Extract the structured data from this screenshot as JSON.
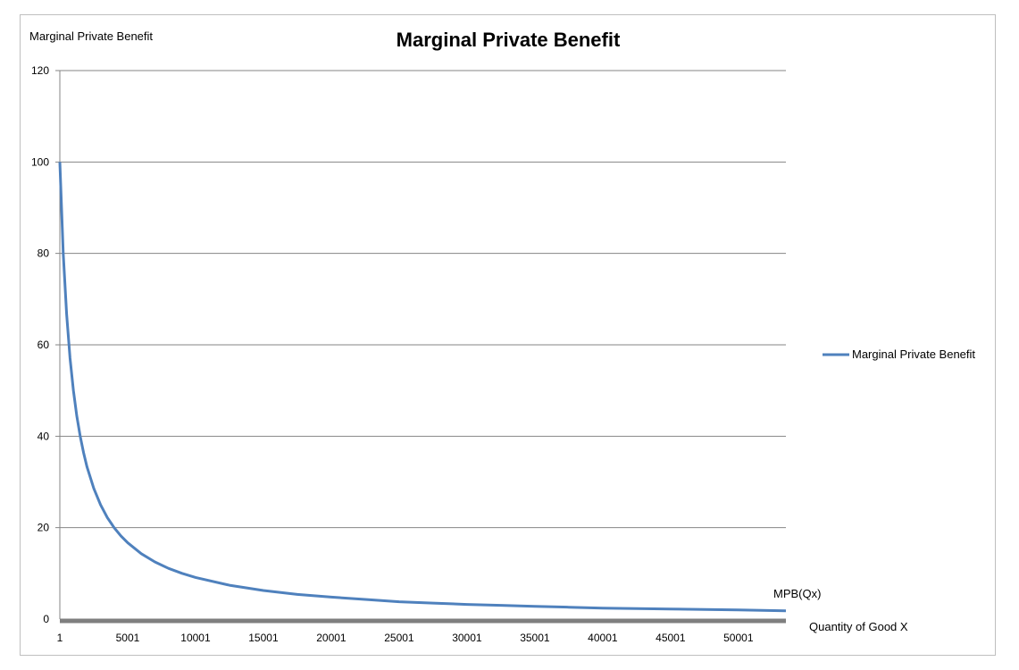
{
  "chart_data": {
    "type": "line",
    "title": "Marginal Private Benefit",
    "ylabel": "Marginal Private Benefit",
    "xlabel": "Quantity of Good X",
    "annotation": "MPB(Qx)",
    "ylim": [
      0,
      120
    ],
    "yticks": [
      "0",
      "20",
      "40",
      "60",
      "80",
      "100",
      "120"
    ],
    "xticks": [
      "1",
      "5001",
      "10001",
      "15001",
      "20001",
      "25001",
      "30001",
      "35001",
      "40001",
      "45001",
      "50001"
    ],
    "xlim": [
      1,
      53500
    ],
    "grid": true,
    "legend_position": "right",
    "series": [
      {
        "name": "Marginal Private Benefit",
        "color": "#4f81bd",
        "x": [
          1,
          250,
          500,
          750,
          1000,
          1250,
          1500,
          1750,
          2000,
          2500,
          3000,
          3500,
          4000,
          4500,
          5001,
          6000,
          7000,
          8000,
          9000,
          10001,
          12500,
          15001,
          17500,
          20001,
          22500,
          25001,
          27500,
          30001,
          32500,
          35001,
          37500,
          40001,
          42500,
          45001,
          47500,
          50001,
          53500
        ],
        "y": [
          100,
          80,
          66.7,
          57.1,
          50,
          44.4,
          40,
          36.4,
          33.3,
          28.6,
          25,
          22.2,
          20,
          18.2,
          16.7,
          14.3,
          12.5,
          11.1,
          10,
          9.1,
          7.4,
          6.25,
          5.4,
          4.8,
          4.3,
          3.8,
          3.5,
          3.2,
          3.0,
          2.8,
          2.6,
          2.4,
          2.3,
          2.2,
          2.1,
          2.0,
          1.8
        ]
      }
    ],
    "baseline_color": "#7f7f7f",
    "gridline_color": "#868686"
  }
}
